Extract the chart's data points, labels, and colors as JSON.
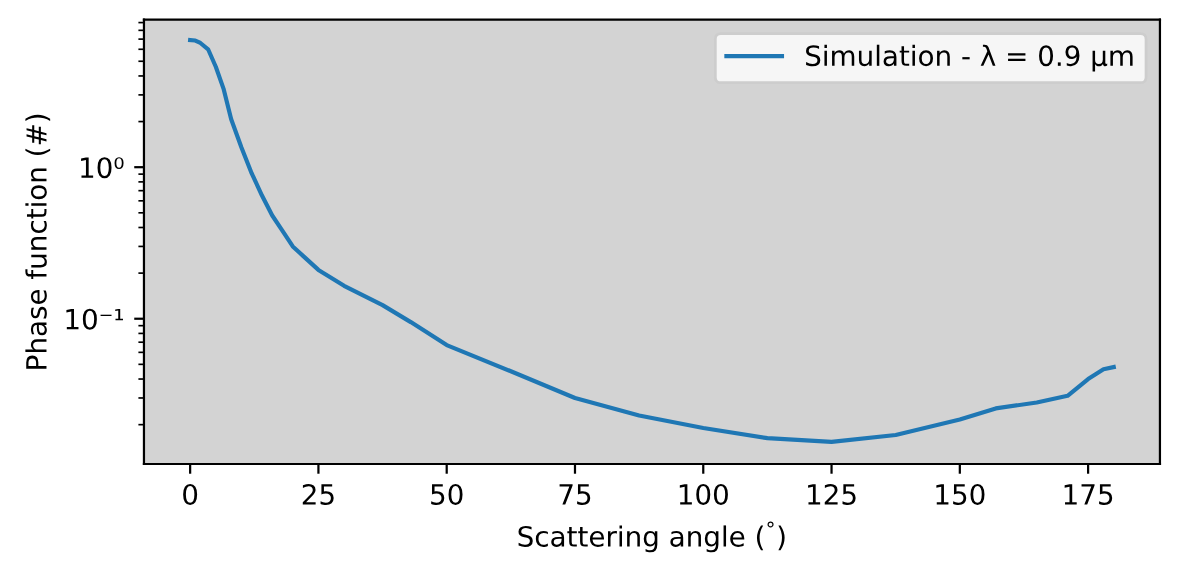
{
  "chart_data": {
    "type": "line",
    "xlabel": "Scattering angle ($^{°}$)",
    "ylabel": "Phase function (#)",
    "x": [
      0,
      1,
      2,
      3.5,
      5,
      6.5,
      8,
      10,
      12,
      14,
      16,
      18,
      20,
      22,
      25,
      30,
      37.5,
      43,
      50,
      62.5,
      75,
      87.5,
      100,
      112.5,
      125,
      137.5,
      150,
      157,
      165,
      171,
      175,
      178,
      180
    ],
    "series": [
      {
        "name": "Simulation - λ = 0.9 μm",
        "color": "#1f77b4",
        "values": [
          6.9,
          6.85,
          6.6,
          6.0,
          4.6,
          3.3,
          2.07,
          1.35,
          0.91,
          0.65,
          0.48,
          0.38,
          0.3,
          0.26,
          0.21,
          0.165,
          0.123,
          0.095,
          0.067,
          0.045,
          0.03,
          0.023,
          0.019,
          0.0163,
          0.0154,
          0.0171,
          0.0216,
          0.0256,
          0.028,
          0.031,
          0.04,
          0.0464,
          0.048
        ]
      }
    ],
    "log": "y",
    "xlim": [
      -9,
      189
    ],
    "ylim": [
      0.011,
      9.4
    ],
    "xticks": [
      0,
      25,
      50,
      75,
      100,
      125,
      150,
      175
    ],
    "yticks": [
      {
        "value": 1,
        "label": "10⁰"
      },
      {
        "value": 0.1,
        "label": "10⁻¹"
      }
    ],
    "legend": "top right",
    "grid": false
  }
}
